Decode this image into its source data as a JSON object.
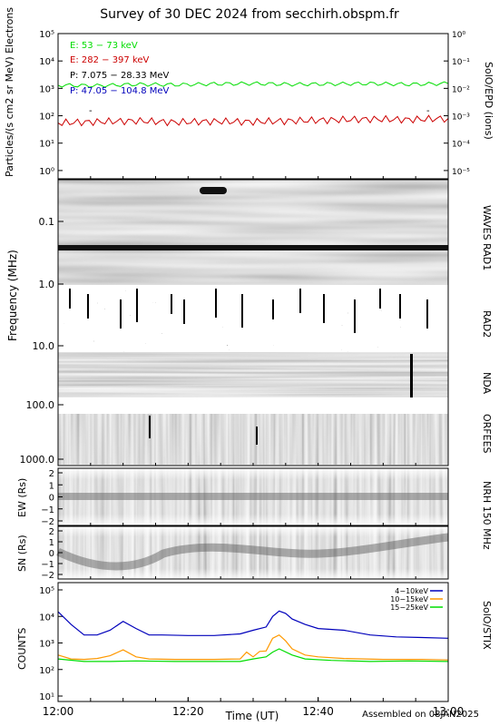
{
  "title": "Survey of 30 DEC 2024 from secchirh.obspm.fr",
  "footer": "Assembled on 08JAN2025",
  "xlabel": "Time (UT)",
  "time_ticks": [
    "12:00",
    "12:20",
    "12:40",
    "13:00"
  ],
  "colors": {
    "green": "#00dd00",
    "red": "#cc0000",
    "black": "#000000",
    "blue": "#0000bb",
    "orange": "#ff9900"
  },
  "chart_data": [
    {
      "panel": "particles",
      "type": "line",
      "ylabel": "Particles/(s cm2 sr MeV) Electrons",
      "right_label": "SolO/EPD (ions)",
      "yscale": "log",
      "ylim": [
        0.5,
        100000
      ],
      "y_ticks": [
        "10⁰",
        "10¹",
        "10²",
        "10³",
        "10⁴",
        "10⁵"
      ],
      "right_ticks": [
        "10⁻⁵",
        "10⁻⁴",
        "10⁻³",
        "10⁻²",
        "10⁻¹",
        "10⁰"
      ],
      "xlim_minutes": [
        0,
        60
      ],
      "legend": [
        {
          "text": "E: 53 − 73 keV",
          "color": "green"
        },
        {
          "text": "E: 282 − 397 keV",
          "color": "red"
        },
        {
          "text": "P: 7.075 − 28.33 MeV",
          "color": "black"
        },
        {
          "text": "P: 47.05 − 104.8 MeV",
          "color": "blue"
        }
      ],
      "series": [
        {
          "name": "E: 53 − 73 keV",
          "color": "green",
          "x": [
            0,
            6,
            12,
            18,
            24,
            30,
            36,
            42,
            48,
            54,
            60
          ],
          "y": [
            1300,
            1250,
            1400,
            1350,
            1450,
            1500,
            1400,
            1450,
            1500,
            1400,
            1500
          ]
        },
        {
          "name": "E: 282 − 397 keV",
          "color": "red",
          "x": [
            0,
            6,
            12,
            18,
            24,
            30,
            36,
            42,
            48,
            54,
            60
          ],
          "y": [
            55,
            60,
            65,
            58,
            62,
            60,
            65,
            70,
            75,
            72,
            80
          ]
        }
      ]
    },
    {
      "panel": "radio",
      "type": "heatmap",
      "ylabel": "Frequency (MHz)",
      "yscale": "log",
      "ylim": [
        0.02,
        1500
      ],
      "y_ticks": [
        "0.1",
        "1.0",
        "10.0",
        "100.0",
        "1000.0"
      ],
      "instruments": [
        "WAVES RAD1",
        "RAD2",
        "NDA",
        "ORFEES"
      ]
    },
    {
      "panel": "nrh_ew",
      "type": "heatmap",
      "ylabel": "EW (Rs)",
      "ylim": [
        -2,
        2
      ],
      "y_ticks": [
        "2",
        "1",
        "0",
        "−1",
        "−2"
      ],
      "instrument": "NRH 150 MHz"
    },
    {
      "panel": "nrh_sn",
      "type": "heatmap",
      "ylabel": "SN (Rs)",
      "ylim": [
        -2,
        2
      ],
      "y_ticks": [
        "2",
        "1",
        "0",
        "−1",
        "−2"
      ]
    },
    {
      "panel": "stix",
      "type": "line",
      "ylabel": "COUNTS",
      "right_label": "SolO/STIX",
      "yscale": "log",
      "ylim": [
        10,
        100000
      ],
      "y_ticks": [
        "10¹",
        "10²",
        "10³",
        "10⁴",
        "10⁵"
      ],
      "xlim_minutes": [
        0,
        60
      ],
      "series": [
        {
          "name": "4−10keV",
          "color": "blue",
          "x": [
            0,
            2,
            4,
            6,
            8,
            10,
            12,
            14,
            16,
            20,
            24,
            28,
            30,
            32,
            33,
            34,
            35,
            36,
            38,
            40,
            44,
            48,
            52,
            56,
            60
          ],
          "y": [
            15000,
            5000,
            2000,
            2000,
            3000,
            6500,
            3500,
            2000,
            2000,
            1900,
            1900,
            2200,
            3000,
            4000,
            10000,
            16000,
            13000,
            8000,
            5000,
            3500,
            3000,
            2000,
            1700,
            1600,
            1500
          ]
        },
        {
          "name": "10−15keV",
          "color": "orange",
          "x": [
            0,
            2,
            4,
            6,
            8,
            10,
            12,
            14,
            18,
            24,
            28,
            29,
            30,
            31,
            32,
            33,
            34,
            35,
            36,
            38,
            40,
            44,
            50,
            56,
            60
          ],
          "y": [
            350,
            250,
            240,
            260,
            330,
            550,
            300,
            250,
            240,
            240,
            250,
            450,
            300,
            480,
            500,
            1500,
            2000,
            1200,
            600,
            350,
            300,
            260,
            240,
            240,
            230
          ]
        },
        {
          "name": "15−25keV",
          "color": "green",
          "x": [
            0,
            4,
            8,
            12,
            18,
            24,
            28,
            30,
            32,
            33,
            34,
            36,
            38,
            42,
            48,
            54,
            60
          ],
          "y": [
            250,
            200,
            200,
            210,
            200,
            200,
            200,
            250,
            300,
            450,
            600,
            350,
            250,
            220,
            200,
            210,
            200
          ]
        }
      ]
    }
  ]
}
